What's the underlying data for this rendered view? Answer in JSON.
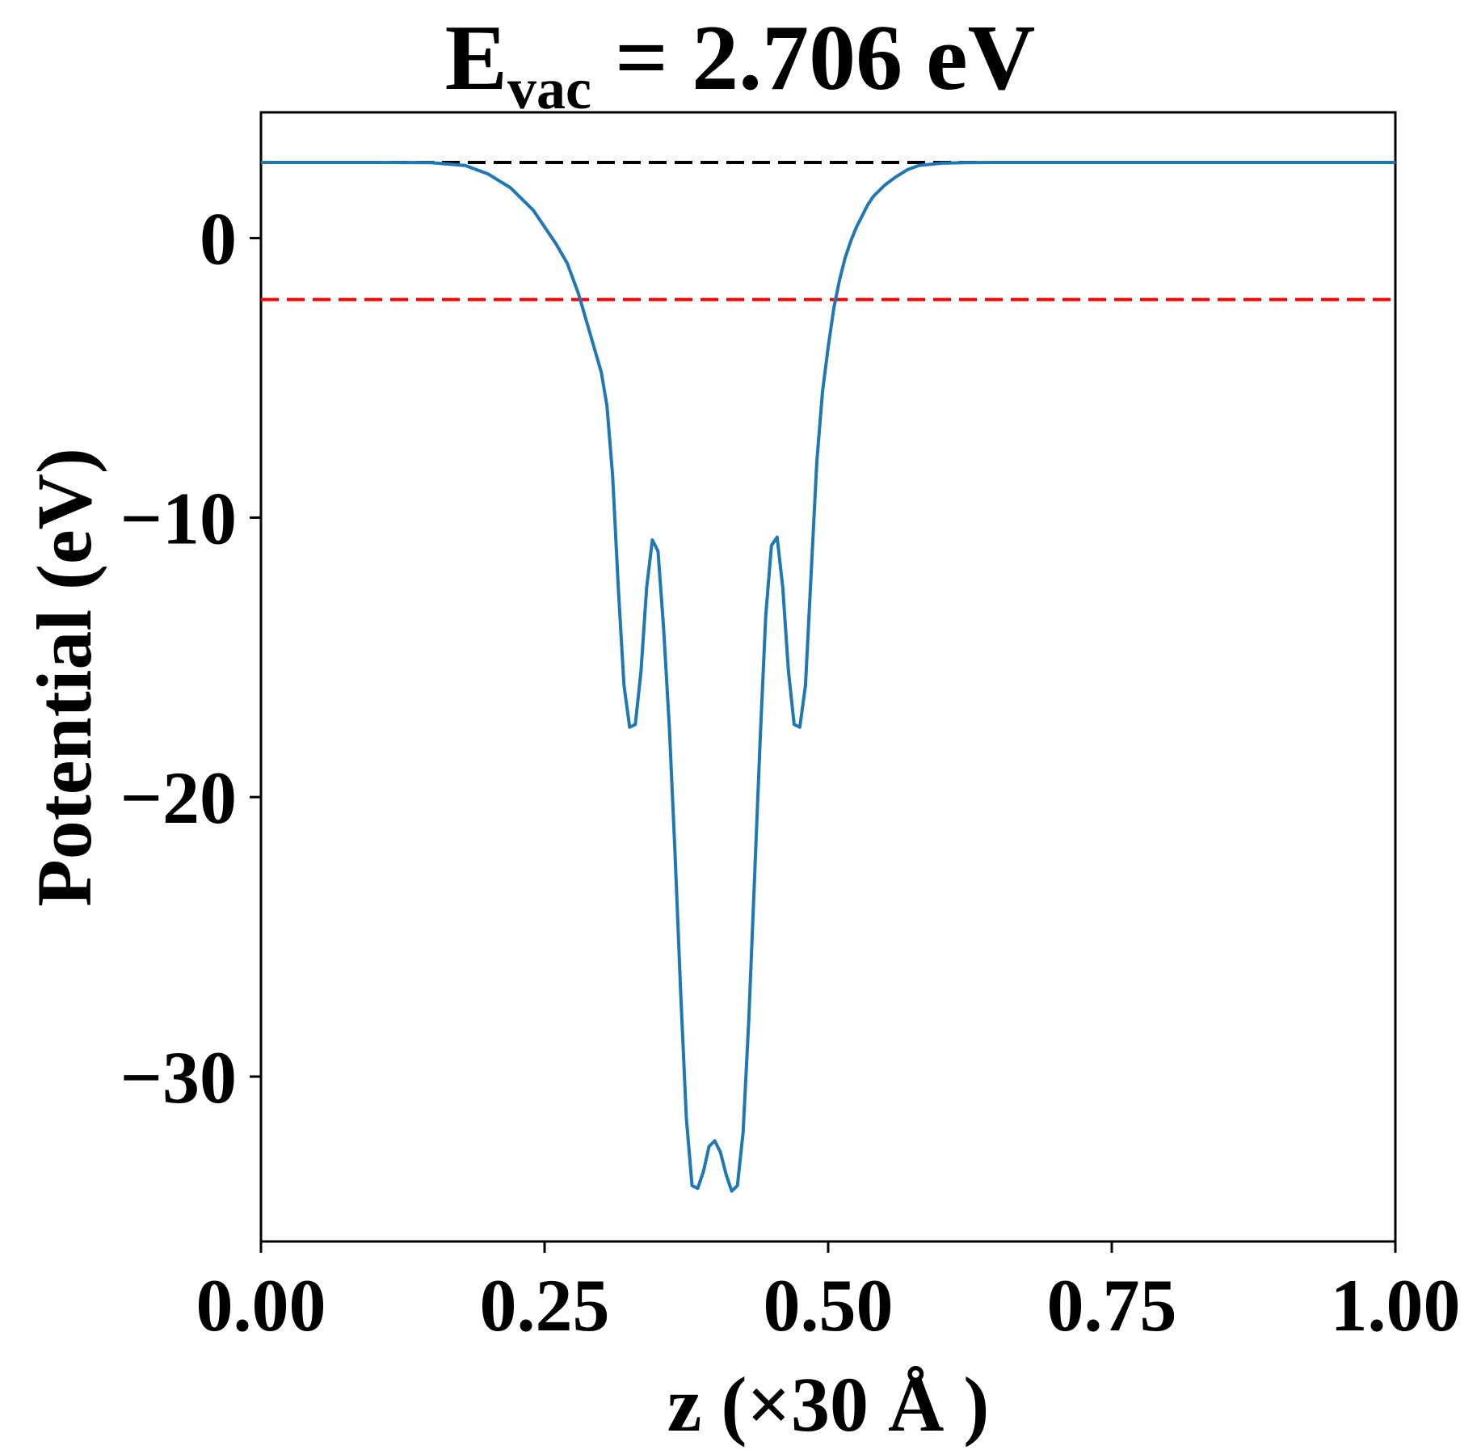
{
  "chart_data": {
    "type": "line",
    "title": {
      "main": "E",
      "subscript": "vac",
      "rest": " = 2.706 eV"
    },
    "xlabel": "z (×30 Å )",
    "ylabel": "Potential (eV)",
    "xlim": [
      0,
      1
    ],
    "ylim": [
      -35.9,
      4.5
    ],
    "xticks": [
      0,
      0.25,
      0.5,
      0.75,
      1
    ],
    "xtick_labels": [
      "0.00",
      "0.25",
      "0.50",
      "0.75",
      "1.00"
    ],
    "yticks": [
      0,
      -10,
      -20,
      -30
    ],
    "ytick_labels": [
      "0",
      "−10",
      "−20",
      "−30"
    ],
    "grid": false,
    "reference_lines": [
      {
        "y": 2.706,
        "color": "#000000",
        "style": "dashed"
      },
      {
        "y": -2.2,
        "color": "#ff0000",
        "style": "dashed"
      }
    ],
    "series": [
      {
        "color": "#1f77b4",
        "x": [
          0.0,
          0.05,
          0.1,
          0.15,
          0.18,
          0.2,
          0.22,
          0.24,
          0.26,
          0.27,
          0.28,
          0.29,
          0.3,
          0.305,
          0.31,
          0.315,
          0.32,
          0.325,
          0.33,
          0.335,
          0.34,
          0.345,
          0.35,
          0.355,
          0.36,
          0.365,
          0.37,
          0.375,
          0.38,
          0.385,
          0.39,
          0.395,
          0.4,
          0.405,
          0.41,
          0.415,
          0.42,
          0.425,
          0.43,
          0.435,
          0.44,
          0.445,
          0.45,
          0.455,
          0.46,
          0.465,
          0.47,
          0.475,
          0.48,
          0.485,
          0.49,
          0.495,
          0.5,
          0.505,
          0.51,
          0.515,
          0.52,
          0.525,
          0.53,
          0.535,
          0.54,
          0.55,
          0.56,
          0.57,
          0.58,
          0.6,
          0.62,
          0.64,
          0.66,
          0.68,
          0.7,
          0.75,
          0.8,
          0.85,
          0.9,
          0.95,
          1.0
        ],
        "y": [
          2.706,
          2.706,
          2.706,
          2.7,
          2.6,
          2.3,
          1.8,
          1.0,
          -0.2,
          -0.9,
          -2.0,
          -3.4,
          -4.8,
          -6.0,
          -8.5,
          -12.5,
          -16.0,
          -17.5,
          -17.4,
          -15.5,
          -12.5,
          -10.8,
          -11.2,
          -14.0,
          -17.5,
          -22.0,
          -27.0,
          -31.5,
          -33.9,
          -34.0,
          -33.4,
          -32.5,
          -32.3,
          -32.7,
          -33.5,
          -34.1,
          -33.9,
          -32.0,
          -28.0,
          -23.0,
          -18.0,
          -13.5,
          -11.0,
          -10.7,
          -12.5,
          -15.5,
          -17.4,
          -17.5,
          -16.0,
          -12.0,
          -8.0,
          -5.5,
          -3.9,
          -2.5,
          -1.5,
          -0.7,
          -0.1,
          0.4,
          0.8,
          1.2,
          1.5,
          1.9,
          2.2,
          2.45,
          2.6,
          2.68,
          2.7,
          2.706,
          2.706,
          2.706,
          2.706,
          2.706,
          2.706,
          2.706,
          2.706,
          2.706,
          2.706
        ]
      }
    ]
  }
}
